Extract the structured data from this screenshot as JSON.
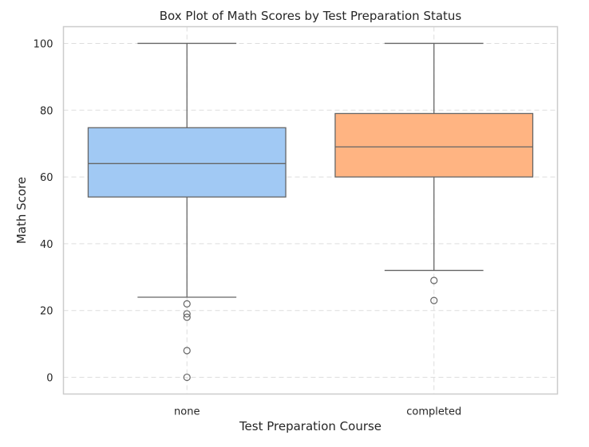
{
  "chart_data": {
    "type": "box",
    "title": "Box Plot of Math Scores by Test Preparation Status",
    "xlabel": "Test Preparation Course",
    "ylabel": "Math Score",
    "ylim": [
      -5,
      105
    ],
    "yticks": [
      0,
      20,
      40,
      60,
      80,
      100
    ],
    "grid": true,
    "categories": [
      "none",
      "completed"
    ],
    "boxes": [
      {
        "category": "none",
        "whisker_low": 24,
        "q1": 54,
        "median": 64,
        "q3": 74.75,
        "whisker_high": 100,
        "outliers": [
          22,
          19,
          18,
          8,
          0
        ],
        "color": "#a1c9f4"
      },
      {
        "category": "completed",
        "whisker_low": 32,
        "q1": 60,
        "median": 69,
        "q3": 79,
        "whisker_high": 100,
        "outliers": [
          29,
          23
        ],
        "color": "#ffb482"
      }
    ],
    "colors": {
      "frame": "#cccccc",
      "grid": "#dddddd",
      "lines": "#666666",
      "text": "#262626"
    }
  }
}
